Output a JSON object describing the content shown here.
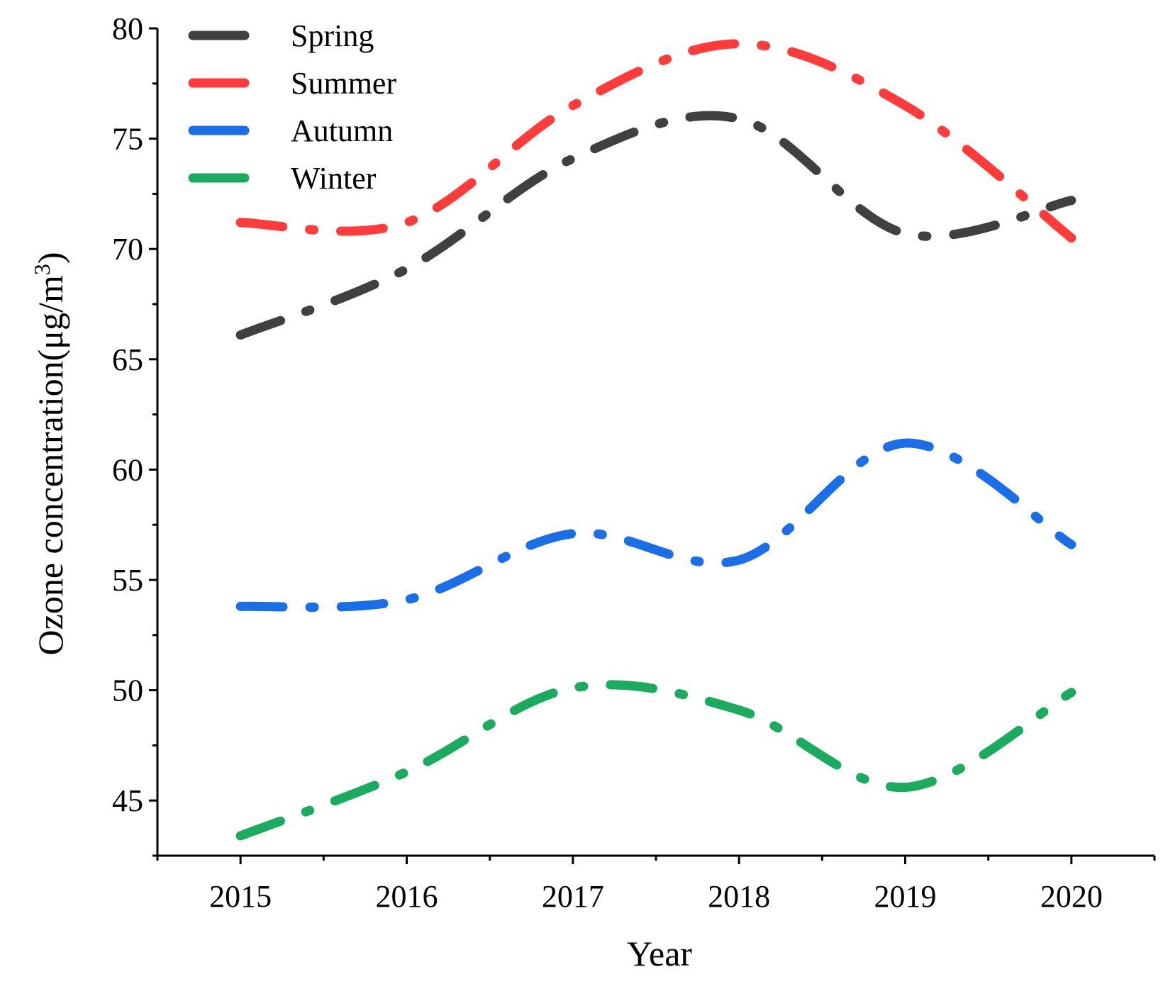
{
  "chart_data": {
    "type": "line",
    "title": "",
    "xlabel": "Year",
    "ylabel": "Ozone concentration(μg/m",
    "ylabel_sup": "3",
    "ylabel_close": ")",
    "x": [
      2015,
      2016,
      2017,
      2018,
      2019,
      2020
    ],
    "x_tick_labels": [
      "2015",
      "2016",
      "2017",
      "2018",
      "2019",
      "2020"
    ],
    "xlim": [
      2014.5,
      2020.5
    ],
    "ylim": [
      42.5,
      80
    ],
    "y_ticks": [
      45,
      50,
      55,
      60,
      65,
      70,
      75,
      80
    ],
    "y_tick_labels": [
      "45",
      "50",
      "55",
      "60",
      "65",
      "70",
      "75",
      "80"
    ],
    "grid": false,
    "legend_position": "top-left",
    "line_style": "dash-dot",
    "series": [
      {
        "name": "Spring",
        "color": "#404040",
        "values": [
          66.1,
          69.1,
          74.1,
          75.9,
          70.7,
          72.2
        ]
      },
      {
        "name": "Summer",
        "color": "#ff3b3b",
        "values": [
          71.2,
          71.2,
          76.5,
          79.3,
          76.5,
          70.5
        ]
      },
      {
        "name": "Autumn",
        "color": "#1a6fe8",
        "values": [
          53.8,
          54.1,
          57.1,
          55.9,
          61.2,
          56.6
        ]
      },
      {
        "name": "Winter",
        "color": "#1aab5e",
        "values": [
          43.4,
          46.3,
          50.1,
          49.1,
          45.6,
          49.9
        ]
      }
    ]
  }
}
